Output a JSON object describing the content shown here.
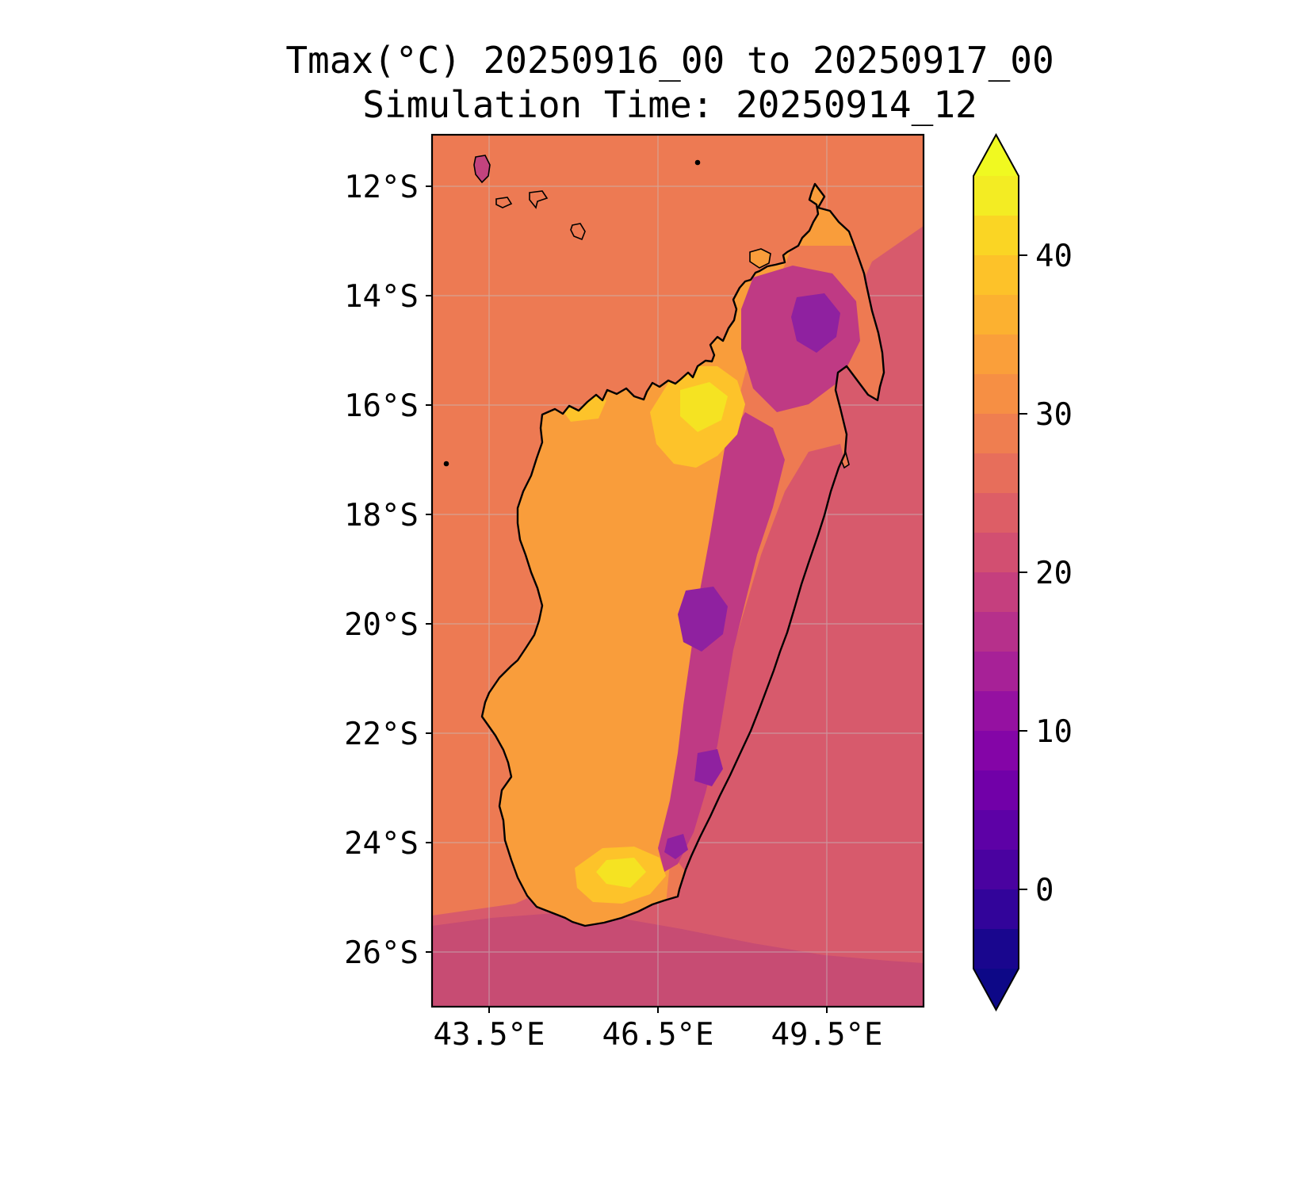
{
  "title": {
    "line1": "Tmax(°C) 20250916_00 to 20250917_00",
    "line2": "Simulation Time: 20250914_12"
  },
  "axes": {
    "y_ticks": [
      "12°S",
      "14°S",
      "16°S",
      "18°S",
      "20°S",
      "22°S",
      "24°S",
      "26°S"
    ],
    "x_ticks": [
      "43.5°E",
      "46.5°E",
      "49.5°E"
    ]
  },
  "colorbar": {
    "ticks": [
      "40",
      "30",
      "20",
      "10",
      "0"
    ],
    "range_min": -5,
    "range_max": 45,
    "arrow_top": "#f0f921",
    "arrow_bottom": "#0d0887",
    "segments_top_to_bottom": [
      "#f3ec23",
      "#fad524",
      "#fdc229",
      "#fcb130",
      "#fa9f3a",
      "#f68f44",
      "#ef7e50",
      "#e76e5b",
      "#dd5e66",
      "#d24f71",
      "#c53f7e",
      "#b6308b",
      "#a72197",
      "#9511a1",
      "#8405a7",
      "#7100a8",
      "#5d01a6",
      "#4a02a0",
      "#32049a",
      "#19068e"
    ]
  },
  "colors": {
    "ocean_warm": "#ed7a53",
    "ocean_cool": "#d75a6c",
    "ocean_cool_dark": "#c74c73",
    "land_base": "#f99d3b",
    "land_salmon": "#ee7a52",
    "land_rose": "#d8576b",
    "land_magenta": "#bf3a84",
    "land_purple": "#8f21a0",
    "land_yellow": "#fdc32a",
    "land_yellow_bright": "#f5e322",
    "island_comoro": "#c2437e",
    "island_small": "#ee7a52",
    "grid": "#c4c4c4",
    "outline": "#000000"
  },
  "chart_data": {
    "type": "heatmap",
    "title": "Tmax(°C) 20250916_00 to 20250917_00",
    "subtitle": "Simulation Time: 20250914_12",
    "variable": "Tmax",
    "units": "°C",
    "valid_period": "20250916_00 to 20250917_00",
    "simulation_time": "20250914_12",
    "region_shown": "Madagascar and surrounding ocean",
    "x_ticks": [
      "43.5°E",
      "46.5°E",
      "49.5°E"
    ],
    "y_ticks": [
      "12°S",
      "14°S",
      "16°S",
      "18°S",
      "20°S",
      "22°S",
      "24°S",
      "26°S"
    ],
    "xlim_deg_east": [
      42.5,
      51.2
    ],
    "ylim_deg_south": [
      11.0,
      27.1
    ],
    "colormap": "plasma",
    "contour_level_step_c": 2.5,
    "colorbar_ticks": [
      0,
      10,
      20,
      30,
      40
    ],
    "colorbar_range": [
      -5,
      45
    ],
    "regions": [
      {
        "area": "ocean northwest (Mozambique Channel)",
        "tmax_c": 27
      },
      {
        "area": "ocean east/southeast (Indian Ocean)",
        "tmax_c": 23
      },
      {
        "area": "ocean far south band",
        "tmax_c": 21
      },
      {
        "area": "western lowlands of Madagascar",
        "tmax_c": 32
      },
      {
        "area": "northwest interior hot spot (~16.5°S, 46.5°E)",
        "tmax_c": 37
      },
      {
        "area": "southern interior hot spot (~25°S, 45.5°E)",
        "tmax_c": 37
      },
      {
        "area": "central-eastern highland spine",
        "tmax_c": 17
      },
      {
        "area": "northern Tsaratanana massif pocket",
        "tmax_c": 12
      },
      {
        "area": "central highland cold pockets (~19.5°S)",
        "tmax_c": 11
      },
      {
        "area": "east coast strip",
        "tmax_c": 24
      }
    ]
  }
}
